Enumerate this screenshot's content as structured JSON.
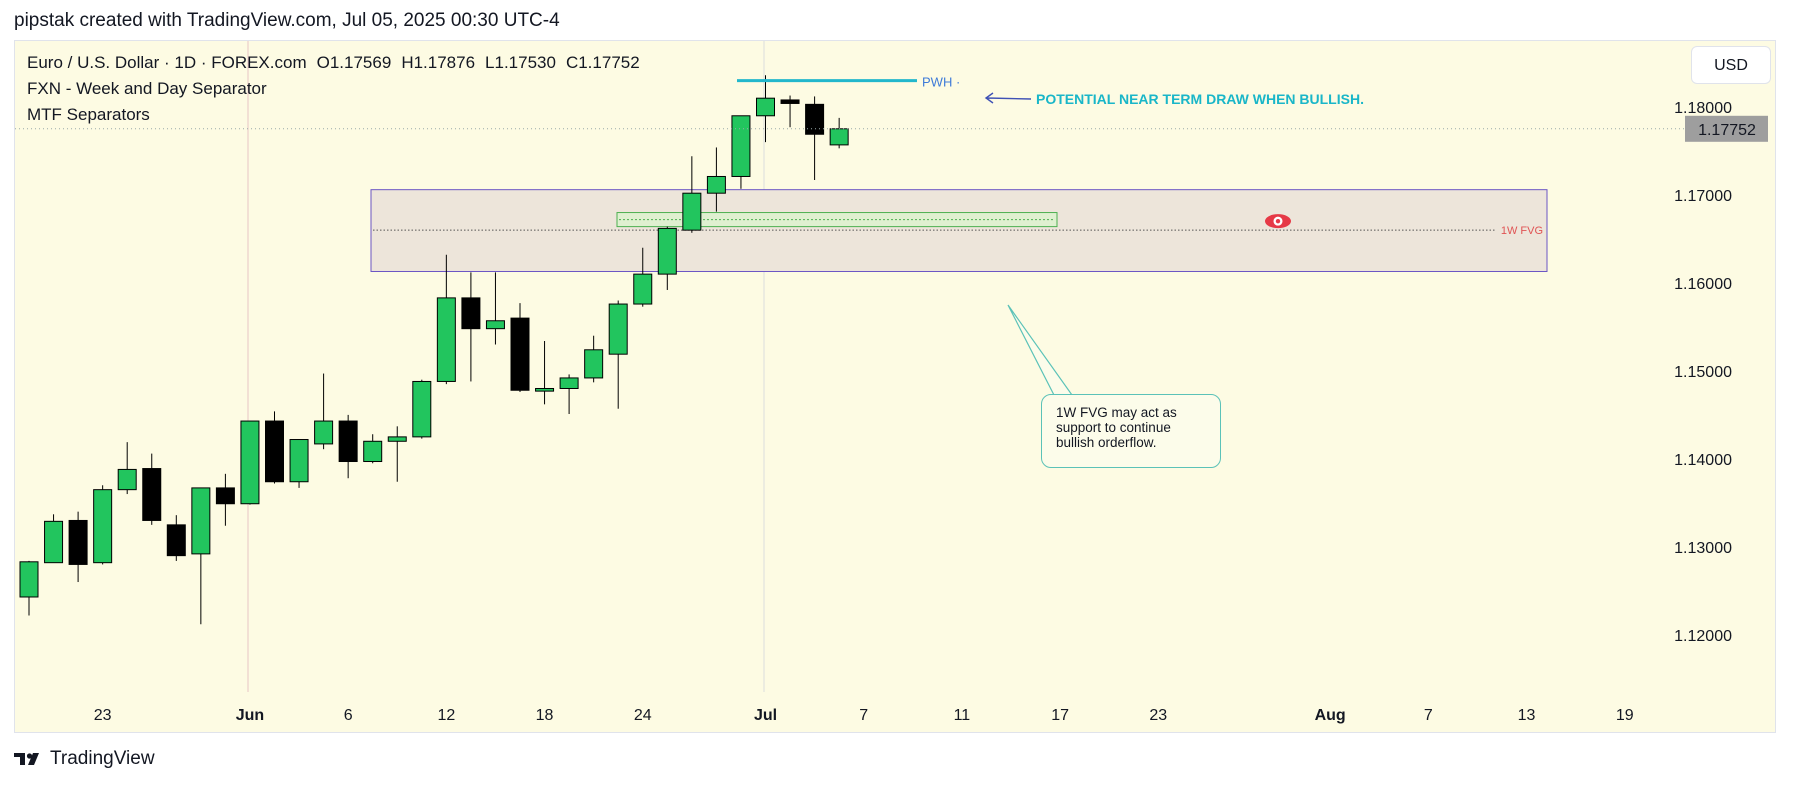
{
  "header": {
    "text": "pipstak created with TradingView.com, Jul 05, 2025 00:30 UTC-4"
  },
  "legend": {
    "symbol": "Euro / U.S. Dollar · 1D · FOREX.com",
    "open": "O1.17569",
    "high": "H1.17876",
    "low": "L1.17530",
    "close": "C1.17752",
    "indicator1": "FXN - Week and Day Separator",
    "indicator2": "MTF Separators"
  },
  "currency_button": {
    "label": "USD"
  },
  "annotations": {
    "pwh_label": "PWH ·",
    "draw_note": "POTENTIAL NEAR TERM DRAW WHEN BULLISH.",
    "fvg_label": "1W FVG",
    "callout_text": "1W FVG may act as support to continue bullish orderflow."
  },
  "footer": {
    "brand": "TradingView"
  },
  "colors": {
    "bull": "#22c55e",
    "bear": "#000000",
    "plot_bg": "#fdfbe3",
    "fvg_fill": "#ede5da",
    "fvg_border": "#6b55c4",
    "pwh_line": "#22b7cc",
    "arrow": "#3f51b5",
    "eye": "#e63946"
  },
  "chart_data": {
    "type": "candlestick",
    "y_axis": {
      "min": 1.1135,
      "max": 1.1875,
      "ticks": [
        1.12,
        1.13,
        1.14,
        1.15,
        1.16,
        1.17,
        1.18
      ],
      "tick_labels": [
        "1.12000",
        "1.13000",
        "1.14000",
        "1.15000",
        "1.16000",
        "1.17000",
        "1.18000"
      ]
    },
    "last_price": {
      "value": 1.17752,
      "label": "1.17752"
    },
    "x_ticks": [
      {
        "label": "23",
        "index": 3
      },
      {
        "label": "Jun",
        "index": 9
      },
      {
        "label": "6",
        "index": 13
      },
      {
        "label": "12",
        "index": 17
      },
      {
        "label": "18",
        "index": 21
      },
      {
        "label": "24",
        "index": 25
      },
      {
        "label": "Jul",
        "index": 30
      },
      {
        "label": "7",
        "index": 34
      },
      {
        "label": "11",
        "index": 38
      },
      {
        "label": "17",
        "index": 42
      },
      {
        "label": "23",
        "index": 46
      },
      {
        "label": "Aug",
        "index": 53
      },
      {
        "label": "7",
        "index": 57
      },
      {
        "label": "13",
        "index": 61
      },
      {
        "label": "19",
        "index": 65
      }
    ],
    "candles": [
      [
        1.1243,
        1.1283,
        1.1222,
        1.1284
      ],
      [
        1.1282,
        1.1329,
        1.1282,
        1.1337
      ],
      [
        1.133,
        1.128,
        1.126,
        1.134
      ],
      [
        1.1282,
        1.1365,
        1.128,
        1.137
      ],
      [
        1.1365,
        1.1388,
        1.136,
        1.1419
      ],
      [
        1.1389,
        1.133,
        1.1325,
        1.1406
      ],
      [
        1.1325,
        1.129,
        1.1284,
        1.1336
      ],
      [
        1.1292,
        1.1367,
        1.1212,
        1.1367
      ],
      [
        1.1367,
        1.1349,
        1.1324,
        1.1383
      ],
      [
        1.1349,
        1.1443,
        1.1348,
        1.1443
      ],
      [
        1.1443,
        1.1374,
        1.1372,
        1.1454
      ],
      [
        1.1374,
        1.1422,
        1.1367,
        1.1422
      ],
      [
        1.1417,
        1.1443,
        1.1411,
        1.1497
      ],
      [
        1.1443,
        1.1397,
        1.1378,
        1.145
      ],
      [
        1.1397,
        1.142,
        1.1395,
        1.1428
      ],
      [
        1.142,
        1.1425,
        1.1374,
        1.1437
      ],
      [
        1.1425,
        1.1488,
        1.1423,
        1.149
      ],
      [
        1.1488,
        1.1583,
        1.1485,
        1.1632
      ],
      [
        1.1583,
        1.1548,
        1.1488,
        1.1612
      ],
      [
        1.1548,
        1.1557,
        1.153,
        1.1612
      ],
      [
        1.156,
        1.1478,
        1.1476,
        1.1577
      ],
      [
        1.1477,
        1.148,
        1.1462,
        1.1534
      ],
      [
        1.148,
        1.1492,
        1.1451,
        1.1496
      ],
      [
        1.1492,
        1.1524,
        1.1487,
        1.154
      ],
      [
        1.1519,
        1.1576,
        1.1457,
        1.158
      ],
      [
        1.1576,
        1.161,
        1.1573,
        1.164
      ],
      [
        1.161,
        1.1662,
        1.1592,
        1.1664
      ],
      [
        1.166,
        1.1702,
        1.1657,
        1.1744
      ],
      [
        1.1702,
        1.1721,
        1.1681,
        1.1754
      ],
      [
        1.1721,
        1.179,
        1.1707,
        1.179
      ],
      [
        1.179,
        1.181,
        1.176,
        1.1836
      ],
      [
        1.1808,
        1.1804,
        1.1777,
        1.1813
      ],
      [
        1.1803,
        1.1769,
        1.1717,
        1.1812
      ],
      [
        1.17569,
        1.17752,
        1.1753,
        1.17876
      ]
    ],
    "pwh": {
      "price": 1.183
    },
    "fvg_zone": {
      "top": 1.1706,
      "bottom": 1.1613,
      "midline": 1.166
    },
    "green_rect": {
      "top": 1.168,
      "bottom": 1.1664
    }
  }
}
